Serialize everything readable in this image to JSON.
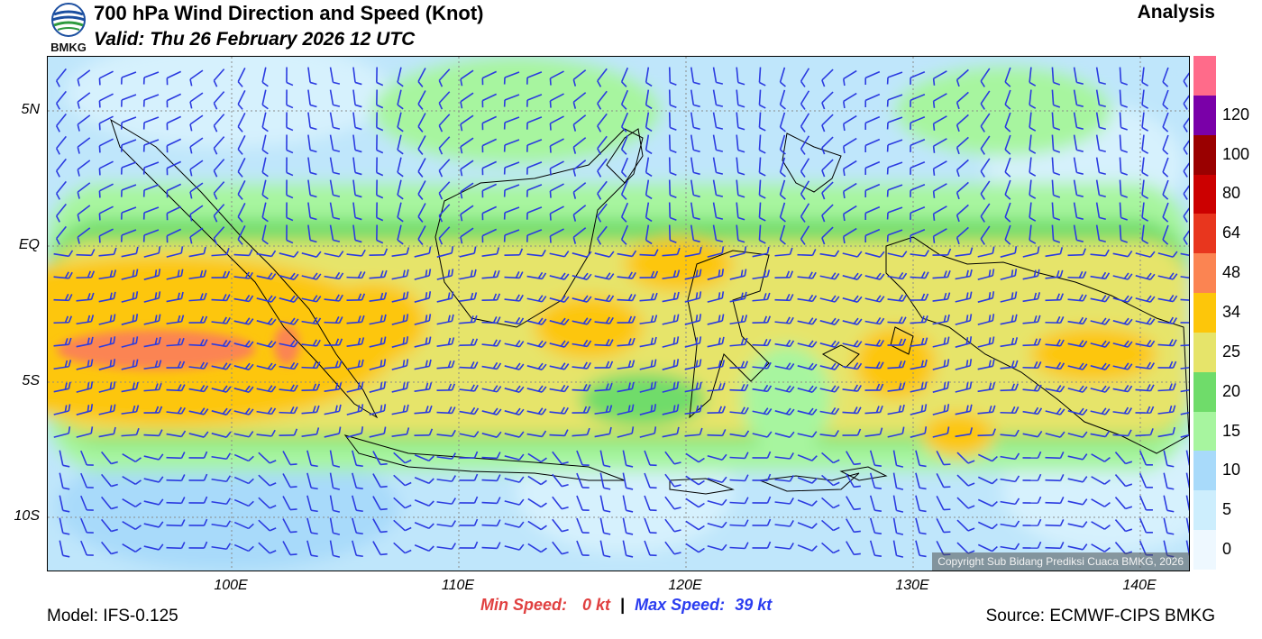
{
  "header": {
    "logo_text": "BMKG",
    "title": "700 hPa Wind Direction and Speed (Knot)",
    "valid": "Valid: Thu 26 February 2026 12 UTC",
    "mode": "Analysis"
  },
  "map": {
    "lat_labels": [
      "5N",
      "EQ",
      "5S",
      "10S"
    ],
    "lon_labels": [
      "100E",
      "110E",
      "120E",
      "130E",
      "140E"
    ],
    "copyright": "Copyright Sub Bidang Prediksi Cuaca BMKG, 2026",
    "barb_color": "#2b3be0"
  },
  "colorbar": {
    "levels": [
      "0",
      "5",
      "10",
      "15",
      "20",
      "25",
      "34",
      "48",
      "64",
      "80",
      "100",
      "120"
    ],
    "colors": [
      "#eef8ff",
      "#cdeefd",
      "#a8dafa",
      "#a7f59f",
      "#6fdc6a",
      "#e6e46a",
      "#fdc60a",
      "#fb8452",
      "#e8361e",
      "#cc0000",
      "#9a0000",
      "#7a00a8",
      "#ff6b8a"
    ]
  },
  "footer": {
    "model": "Model: IFS-0.125",
    "min_label": "Min Speed:",
    "min_value": "0 kt",
    "separator": "|",
    "max_label": "Max Speed:",
    "max_value": "39 kt",
    "source": "Source: ECMWF-CIPS BMKG"
  }
}
